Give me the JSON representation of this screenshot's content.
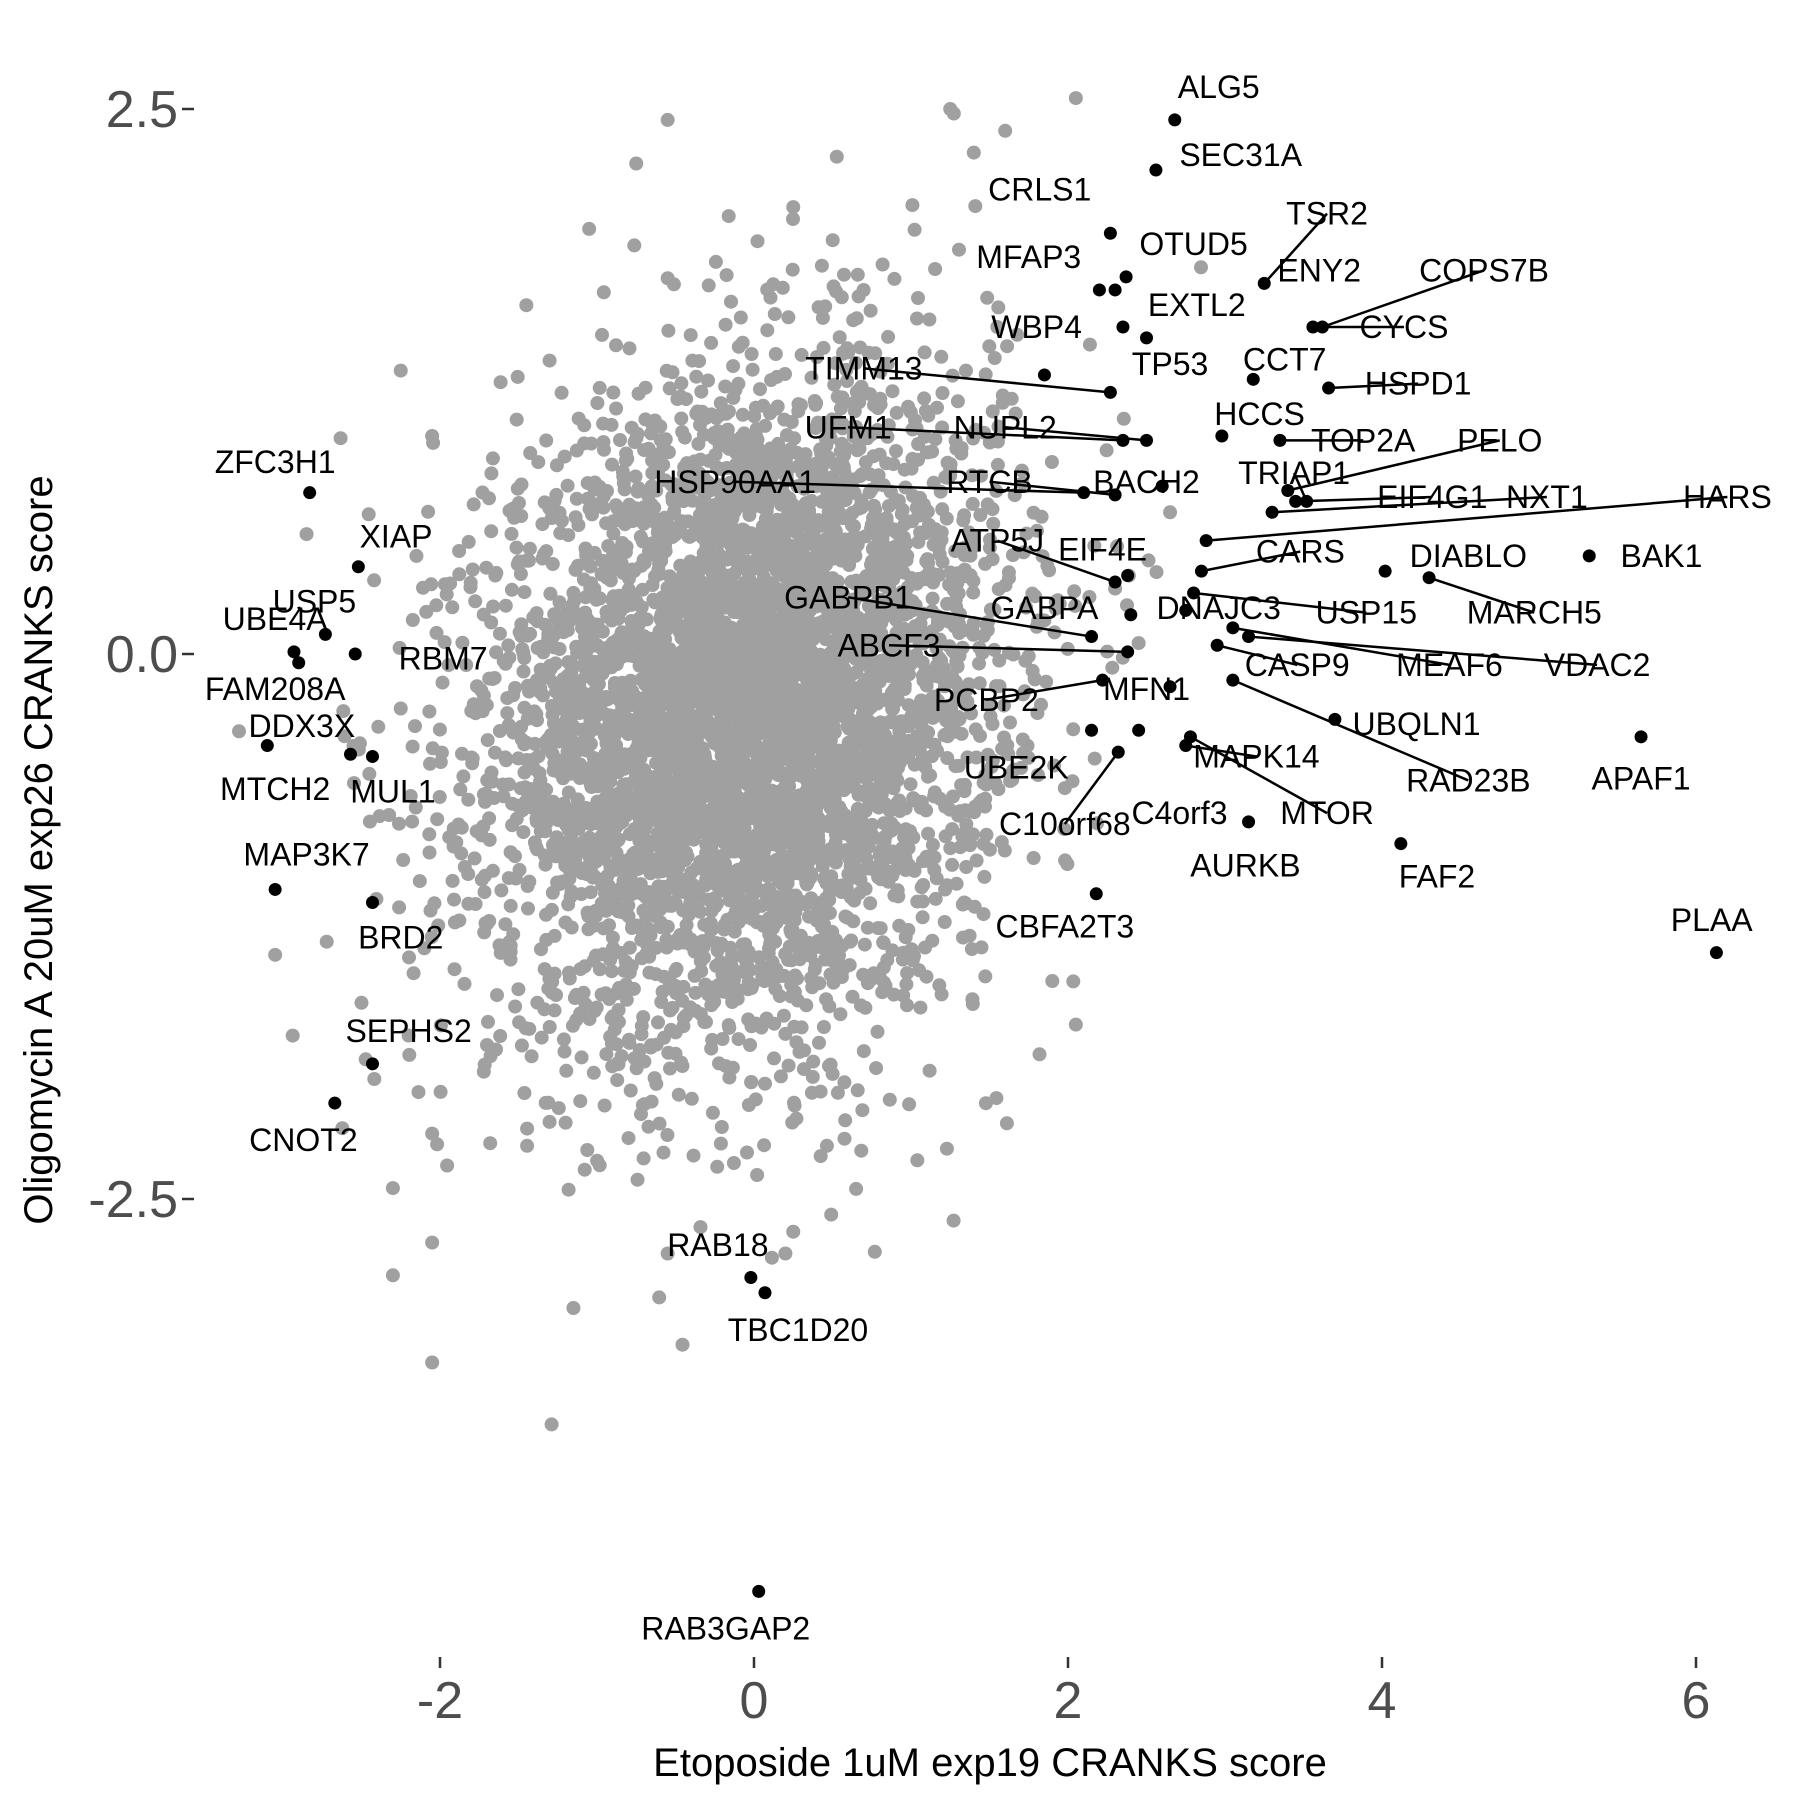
{
  "chart_data": {
    "type": "scatter",
    "title": "",
    "xlabel": "Etoposide 1uM exp19 CRANKS score",
    "ylabel": "Oligomycin A 20uM exp26 CRANKS score",
    "xlim": [
      -3.8,
      6.6
    ],
    "ylim": [
      -4.55,
      3.0
    ],
    "x_ticks": [
      {
        "value": -2,
        "label": "-2"
      },
      {
        "value": 0,
        "label": "0"
      },
      {
        "value": 2,
        "label": "2"
      },
      {
        "value": 4,
        "label": "4"
      },
      {
        "value": 6,
        "label": "6"
      }
    ],
    "y_ticks": [
      {
        "value": 2.5,
        "label": "2.5"
      },
      {
        "value": 0.0,
        "label": "0.0"
      },
      {
        "value": -2.5,
        "label": "-2.5"
      }
    ],
    "grid": false,
    "legend": "none",
    "colors": {
      "background_points": "#a0a0a0",
      "highlighted_points": "#000000",
      "tick_text": "#4d4d4d"
    },
    "background_cloud": {
      "n": 5200,
      "x_mean": -0.05,
      "x_sd": 0.8,
      "y_mean": -0.25,
      "y_sd": 0.75,
      "correlation": 0.15
    },
    "background_outliers": [
      {
        "x": 2.05,
        "y": 2.55
      },
      {
        "x": 1.25,
        "y": 2.5
      },
      {
        "x": 1.6,
        "y": 2.4
      },
      {
        "x": -0.55,
        "y": 2.45
      },
      {
        "x": -0.75,
        "y": 2.25
      },
      {
        "x": 1.4,
        "y": 2.3
      },
      {
        "x": -1.05,
        "y": 1.95
      },
      {
        "x": 0.25,
        "y": 2.05
      },
      {
        "x": -1.45,
        "y": 1.6
      },
      {
        "x": -2.25,
        "y": 1.3
      },
      {
        "x": -2.05,
        "y": 1.0
      },
      {
        "x": -2.15,
        "y": 0.45
      },
      {
        "x": -2.85,
        "y": 0.55
      },
      {
        "x": -2.25,
        "y": -0.25
      },
      {
        "x": -2.45,
        "y": -0.55
      },
      {
        "x": -2.1,
        "y": -1.35
      },
      {
        "x": -3.05,
        "y": -1.38
      },
      {
        "x": -2.5,
        "y": -1.6
      },
      {
        "x": -2.2,
        "y": -1.75
      },
      {
        "x": -2.05,
        "y": -2.2
      },
      {
        "x": -2.3,
        "y": -2.45
      },
      {
        "x": -2.05,
        "y": -2.7
      },
      {
        "x": -2.3,
        "y": -2.85
      },
      {
        "x": -2.05,
        "y": -3.25
      },
      {
        "x": -1.15,
        "y": -3.0
      },
      {
        "x": 0.2,
        "y": -2.75
      },
      {
        "x": 0.25,
        "y": -2.65
      },
      {
        "x": -0.55,
        "y": -2.75
      },
      {
        "x": 2.05,
        "y": -1.7
      },
      {
        "x": 1.9,
        "y": -1.5
      },
      {
        "x": 2.45,
        "y": 0.05
      },
      {
        "x": 2.3,
        "y": 0.3
      },
      {
        "x": 2.65,
        "y": 0.65
      },
      {
        "x": 1.55,
        "y": 1.5
      },
      {
        "x": 1.35,
        "y": 1.3
      },
      {
        "x": -1.2,
        "y": -2.15
      }
    ],
    "highlighted_points": [
      {
        "name": "ALG5",
        "x": 2.68,
        "y": 2.45,
        "lx": 2.96,
        "ly": 2.6,
        "ln": false
      },
      {
        "name": "SEC31A",
        "x": 2.56,
        "y": 2.22,
        "lx": 3.1,
        "ly": 2.29,
        "ln": false
      },
      {
        "name": "CRLS1",
        "x": 2.27,
        "y": 1.93,
        "lx": 1.82,
        "ly": 2.13,
        "ln": false
      },
      {
        "name": "OTUD5",
        "x": 2.37,
        "y": 1.73,
        "lx": 2.8,
        "ly": 1.88,
        "ln": false
      },
      {
        "name": "MFAP3",
        "x": 2.2,
        "y": 1.67,
        "lx": 1.75,
        "ly": 1.82,
        "ln": false
      },
      {
        "name": "TSR2",
        "x": 3.25,
        "y": 1.7,
        "lx": 3.65,
        "ly": 2.02,
        "ln": true
      },
      {
        "name": "ENY2",
        "x": 2.3,
        "y": 1.67,
        "lx": 3.6,
        "ly": 1.76,
        "ln": false
      },
      {
        "name": "COPS7B",
        "x": 3.62,
        "y": 1.5,
        "lx": 4.65,
        "ly": 1.76,
        "ln": true
      },
      {
        "name": "EXTL2",
        "x": 2.35,
        "y": 1.5,
        "lx": 2.82,
        "ly": 1.6,
        "ln": false
      },
      {
        "name": "WBP4",
        "x": 2.5,
        "y": 1.45,
        "lx": 1.8,
        "ly": 1.5,
        "ln": false
      },
      {
        "name": "CYCS",
        "x": 3.56,
        "y": 1.5,
        "lx": 4.14,
        "ly": 1.5,
        "ln": true
      },
      {
        "name": "TP53",
        "x": 1.85,
        "y": 1.28,
        "lx": 2.65,
        "ly": 1.33,
        "ln": false
      },
      {
        "name": "CCT7",
        "x": 3.18,
        "y": 1.26,
        "lx": 3.38,
        "ly": 1.35,
        "ln": false
      },
      {
        "name": "TIMM13",
        "x": 2.27,
        "y": 1.2,
        "lx": 0.7,
        "ly": 1.31,
        "ln": true
      },
      {
        "name": "HSPD1",
        "x": 3.66,
        "y": 1.22,
        "lx": 4.23,
        "ly": 1.24,
        "ln": true
      },
      {
        "name": "HCCS",
        "x": 2.98,
        "y": 1.0,
        "lx": 3.22,
        "ly": 1.1,
        "ln": false
      },
      {
        "name": "UFM1",
        "x": 2.35,
        "y": 0.98,
        "lx": 0.6,
        "ly": 1.04,
        "ln": true
      },
      {
        "name": "NUPL2",
        "x": 2.5,
        "y": 0.98,
        "lx": 1.6,
        "ly": 1.04,
        "ln": true
      },
      {
        "name": "TOP2A",
        "x": 3.35,
        "y": 0.98,
        "lx": 3.88,
        "ly": 0.98,
        "ln": true
      },
      {
        "name": "PELO",
        "x": 3.4,
        "y": 0.75,
        "lx": 4.75,
        "ly": 0.98,
        "ln": true
      },
      {
        "name": "BACH2",
        "x": 2.6,
        "y": 0.77,
        "lx": 2.5,
        "ly": 0.79,
        "ln": false
      },
      {
        "name": "TRIAP1",
        "x": 3.52,
        "y": 0.7,
        "lx": 3.44,
        "ly": 0.83,
        "ln": true
      },
      {
        "name": "HSP90AA1",
        "x": 2.1,
        "y": 0.74,
        "lx": -0.12,
        "ly": 0.79,
        "ln": true
      },
      {
        "name": "RTCB",
        "x": 2.3,
        "y": 0.73,
        "lx": 1.5,
        "ly": 0.79,
        "ln": true
      },
      {
        "name": "EIF4G1",
        "x": 3.45,
        "y": 0.7,
        "lx": 4.32,
        "ly": 0.72,
        "ln": true
      },
      {
        "name": "NXT1",
        "x": 3.3,
        "y": 0.65,
        "lx": 5.05,
        "ly": 0.72,
        "ln": true
      },
      {
        "name": "HARS",
        "x": 2.88,
        "y": 0.52,
        "lx": 6.2,
        "ly": 0.72,
        "ln": true
      },
      {
        "name": "ATP5J",
        "x": 2.3,
        "y": 0.33,
        "lx": 1.55,
        "ly": 0.52,
        "ln": true
      },
      {
        "name": "EIF4E",
        "x": 2.38,
        "y": 0.36,
        "lx": 2.22,
        "ly": 0.48,
        "ln": false
      },
      {
        "name": "CARS",
        "x": 2.85,
        "y": 0.38,
        "lx": 3.48,
        "ly": 0.47,
        "ln": true
      },
      {
        "name": "DIABLO",
        "x": 4.02,
        "y": 0.38,
        "lx": 4.55,
        "ly": 0.45,
        "ln": false
      },
      {
        "name": "BAK1",
        "x": 5.32,
        "y": 0.45,
        "lx": 5.78,
        "ly": 0.45,
        "ln": false
      },
      {
        "name": "GABPB1",
        "x": 2.15,
        "y": 0.08,
        "lx": 0.6,
        "ly": 0.26,
        "ln": true
      },
      {
        "name": "GABPA",
        "x": 2.4,
        "y": 0.18,
        "lx": 1.85,
        "ly": 0.21,
        "ln": false
      },
      {
        "name": "DNAJC3",
        "x": 2.75,
        "y": 0.2,
        "lx": 2.96,
        "ly": 0.21,
        "ln": false
      },
      {
        "name": "USP15",
        "x": 2.8,
        "y": 0.28,
        "lx": 3.9,
        "ly": 0.19,
        "ln": true
      },
      {
        "name": "MARCH5",
        "x": 4.3,
        "y": 0.35,
        "lx": 4.97,
        "ly": 0.19,
        "ln": true
      },
      {
        "name": "ABCF3",
        "x": 2.38,
        "y": 0.01,
        "lx": 0.86,
        "ly": 0.04,
        "ln": true
      },
      {
        "name": "CASP9",
        "x": 2.95,
        "y": 0.04,
        "lx": 3.46,
        "ly": -0.05,
        "ln": true
      },
      {
        "name": "MEAF6",
        "x": 3.05,
        "y": 0.12,
        "lx": 4.43,
        "ly": -0.05,
        "ln": true
      },
      {
        "name": "VDAC2",
        "x": 3.15,
        "y": 0.08,
        "lx": 5.37,
        "ly": -0.05,
        "ln": true
      },
      {
        "name": "PCBP2",
        "x": 2.22,
        "y": -0.12,
        "lx": 1.48,
        "ly": -0.21,
        "ln": true
      },
      {
        "name": "MFN1",
        "x": 2.65,
        "y": -0.15,
        "lx": 2.5,
        "ly": -0.16,
        "ln": false
      },
      {
        "name": "UBQLN1",
        "x": 3.7,
        "y": -0.3,
        "lx": 4.22,
        "ly": -0.32,
        "ln": false
      },
      {
        "name": "RAD23B",
        "x": 3.05,
        "y": -0.12,
        "lx": 4.55,
        "ly": -0.58,
        "ln": true
      },
      {
        "name": "APAF1",
        "x": 5.65,
        "y": -0.38,
        "lx": 5.65,
        "ly": -0.57,
        "ln": false
      },
      {
        "name": "UBE2K",
        "x": 2.15,
        "y": -0.35,
        "lx": 1.67,
        "ly": -0.52,
        "ln": false
      },
      {
        "name": "MAPK14",
        "x": 2.75,
        "y": -0.42,
        "lx": 3.2,
        "ly": -0.47,
        "ln": true
      },
      {
        "name": "MTOR",
        "x": 2.78,
        "y": -0.38,
        "lx": 3.65,
        "ly": -0.73,
        "ln": true
      },
      {
        "name": "C10orf68",
        "x": 2.32,
        "y": -0.45,
        "lx": 1.98,
        "ly": -0.78,
        "ln": true
      },
      {
        "name": "C4orf3",
        "x": 2.45,
        "y": -0.35,
        "lx": 2.71,
        "ly": -0.73,
        "ln": false
      },
      {
        "name": "AURKB",
        "x": 3.15,
        "y": -0.77,
        "lx": 3.13,
        "ly": -0.97,
        "ln": false
      },
      {
        "name": "FAF2",
        "x": 4.12,
        "y": -0.87,
        "lx": 4.35,
        "ly": -1.02,
        "ln": false
      },
      {
        "name": "CBFA2T3",
        "x": 2.18,
        "y": -1.1,
        "lx": 1.98,
        "ly": -1.25,
        "ln": false
      },
      {
        "name": "PLAA",
        "x": 6.13,
        "y": -1.37,
        "lx": 6.1,
        "ly": -1.22,
        "ln": false
      },
      {
        "name": "ZFC3H1",
        "x": -2.83,
        "y": 0.74,
        "lx": -3.05,
        "ly": 0.88,
        "ln": false
      },
      {
        "name": "XIAP",
        "x": -2.52,
        "y": 0.4,
        "lx": -2.28,
        "ly": 0.54,
        "ln": false
      },
      {
        "name": "USP5",
        "x": -2.73,
        "y": 0.09,
        "lx": -2.8,
        "ly": 0.24,
        "ln": false
      },
      {
        "name": "UBE4A",
        "x": -2.93,
        "y": 0.01,
        "lx": -3.05,
        "ly": 0.16,
        "ln": false
      },
      {
        "name": "RBM7",
        "x": -2.54,
        "y": 0.0,
        "lx": -1.98,
        "ly": -0.02,
        "ln": false
      },
      {
        "name": "FAM208A",
        "x": -2.9,
        "y": -0.04,
        "lx": -3.05,
        "ly": -0.16,
        "ln": false
      },
      {
        "name": "DDX3X",
        "x": -2.57,
        "y": -0.46,
        "lx": -2.88,
        "ly": -0.33,
        "ln": false
      },
      {
        "name": "MTCH2",
        "x": -3.1,
        "y": -0.42,
        "lx": -3.05,
        "ly": -0.62,
        "ln": false
      },
      {
        "name": "MUL1",
        "x": -2.43,
        "y": -0.47,
        "lx": -2.3,
        "ly": -0.63,
        "ln": false
      },
      {
        "name": "MAP3K7",
        "x": -3.05,
        "y": -1.08,
        "lx": -2.85,
        "ly": -0.92,
        "ln": false
      },
      {
        "name": "BRD2",
        "x": -2.43,
        "y": -1.14,
        "lx": -2.25,
        "ly": -1.3,
        "ln": false
      },
      {
        "name": "SEPHS2",
        "x": -2.43,
        "y": -1.88,
        "lx": -2.2,
        "ly": -1.73,
        "ln": false
      },
      {
        "name": "CNOT2",
        "x": -2.67,
        "y": -2.06,
        "lx": -2.87,
        "ly": -2.23,
        "ln": false
      },
      {
        "name": "RAB18",
        "x": -0.02,
        "y": -2.86,
        "lx": -0.23,
        "ly": -2.71,
        "ln": false
      },
      {
        "name": "TBC1D20",
        "x": 0.07,
        "y": -2.93,
        "lx": 0.28,
        "ly": -3.1,
        "ln": false
      },
      {
        "name": "RAB3GAP2",
        "x": 0.03,
        "y": -4.3,
        "lx": -0.18,
        "ly": -4.47,
        "ln": false
      }
    ]
  }
}
